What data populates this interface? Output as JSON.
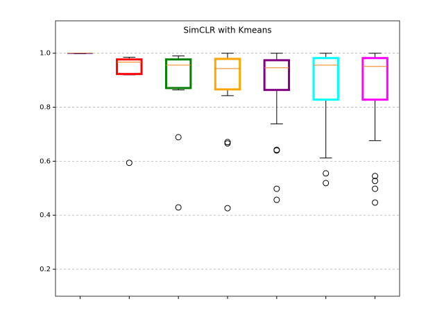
{
  "chart_data": {
    "type": "box",
    "title": "SimCLR with Kmeans",
    "categories": [
      null,
      null,
      null,
      null,
      null,
      null,
      null
    ],
    "ylim": [
      0.1,
      1.12
    ],
    "yticks": [
      0.2,
      0.4,
      0.6,
      0.8,
      {
        "value": 1,
        "label": "1.0"
      }
    ],
    "grid": true,
    "median_color": "#ff7f0e",
    "boxes": [
      {
        "color": "#0000ff",
        "linewidth": 1,
        "min": 0.998,
        "q1": 0.999,
        "median": 1.0,
        "q3": 1.0,
        "max": 1.0,
        "outliers": []
      },
      {
        "color": "#ff0000",
        "linewidth": 3,
        "min": 0.92,
        "q1": 0.923,
        "median": 0.967,
        "q3": 0.977,
        "max": 0.985,
        "outliers": [
          0.594
        ]
      },
      {
        "color": "#008000",
        "linewidth": 3,
        "min": 0.864,
        "q1": 0.871,
        "median": 0.956,
        "q3": 0.977,
        "max": 0.99,
        "outliers": [
          0.689,
          0.429
        ]
      },
      {
        "color": "#ffa500",
        "linewidth": 3,
        "min": 0.843,
        "q1": 0.866,
        "median": 0.943,
        "q3": 0.979,
        "max": 1.0,
        "outliers": [
          0.671,
          0.666,
          0.426
        ]
      },
      {
        "color": "#800080",
        "linewidth": 3,
        "min": 0.738,
        "q1": 0.864,
        "median": 0.946,
        "q3": 0.974,
        "max": 1.0,
        "outliers": [
          0.642,
          0.64,
          0.498,
          0.457
        ]
      },
      {
        "color": "#00ffff",
        "linewidth": 3,
        "min": 0.612,
        "q1": 0.828,
        "median": 0.956,
        "q3": 0.982,
        "max": 1.0,
        "outliers": [
          0.555,
          0.519
        ]
      },
      {
        "color": "#ff00ff",
        "linewidth": 3,
        "min": 0.676,
        "q1": 0.828,
        "median": 0.951,
        "q3": 0.982,
        "max": 1.0,
        "outliers": [
          0.545,
          0.527,
          0.498,
          0.447
        ]
      }
    ]
  }
}
